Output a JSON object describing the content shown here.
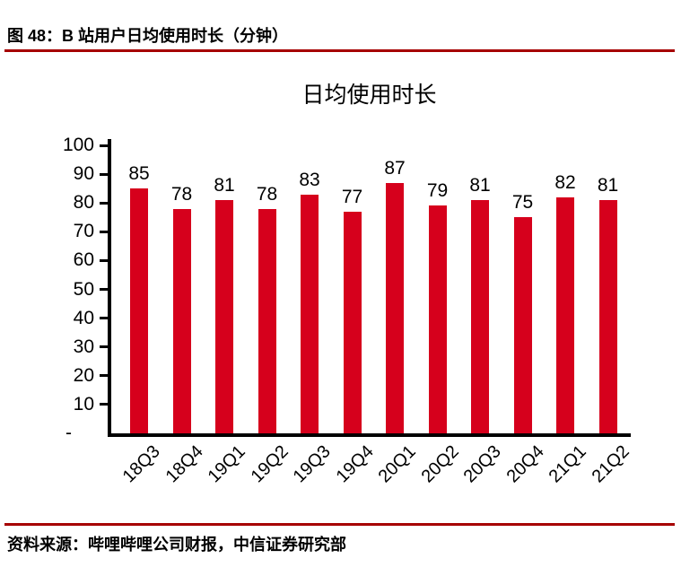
{
  "header": {
    "title": "图 48：B 站用户日均使用时长（分钟）"
  },
  "footer": {
    "source": "资料来源：哔哩哔哩公司财报，中信证券研究部"
  },
  "colors": {
    "bar": "#d6001c",
    "rule": "#a60000",
    "axis": "#000000"
  },
  "chart_data": {
    "type": "bar",
    "title": "日均使用时长",
    "categories": [
      "18Q3",
      "18Q4",
      "19Q1",
      "19Q2",
      "19Q3",
      "19Q4",
      "20Q1",
      "20Q2",
      "20Q3",
      "20Q4",
      "21Q1",
      "21Q2"
    ],
    "values": [
      85,
      78,
      81,
      78,
      83,
      77,
      87,
      79,
      81,
      75,
      82,
      81
    ],
    "bar_labels": [
      85,
      78,
      81,
      78,
      83,
      77,
      87,
      79,
      81,
      75,
      82,
      81
    ],
    "xlabel": "",
    "ylabel": "",
    "ylim": [
      0,
      100
    ],
    "ytick_step": 10,
    "ytick_labels": [
      "-",
      "10",
      "20",
      "30",
      "40",
      "50",
      "60",
      "70",
      "80",
      "90",
      "100"
    ],
    "grid": false,
    "legend": null,
    "bar_color": "#d6001c"
  }
}
